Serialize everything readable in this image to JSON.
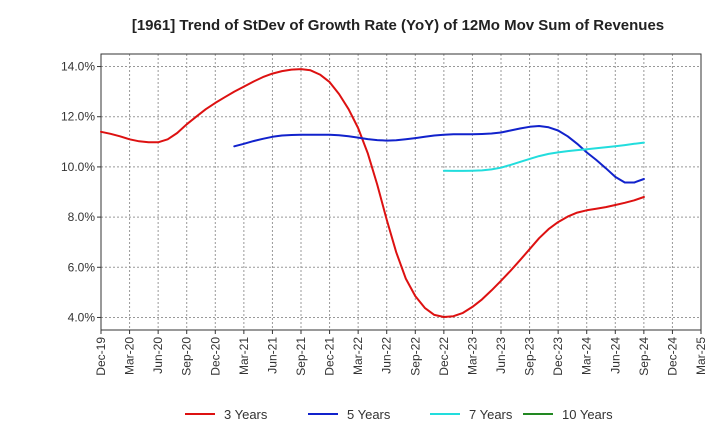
{
  "chart_data": {
    "type": "line",
    "title": "[1961]  Trend of StDev of Growth Rate (YoY) of 12Mo Mov Sum of Revenues",
    "xlabel": "",
    "ylabel": "",
    "ylim": [
      3.5,
      14.5
    ],
    "y_ticks": [
      4.0,
      6.0,
      8.0,
      10.0,
      12.0,
      14.0
    ],
    "y_tick_labels": [
      "4.0%",
      "6.0%",
      "8.0%",
      "10.0%",
      "12.0%",
      "14.0%"
    ],
    "x_tick_labels": [
      "Dec-19",
      "Mar-20",
      "Jun-20",
      "Sep-20",
      "Dec-20",
      "Mar-21",
      "Jun-21",
      "Sep-21",
      "Dec-21",
      "Mar-22",
      "Jun-22",
      "Sep-22",
      "Dec-22",
      "Mar-23",
      "Jun-23",
      "Sep-23",
      "Dec-23",
      "Mar-24",
      "Jun-24",
      "Sep-24",
      "Dec-24",
      "Mar-25"
    ],
    "grid": true,
    "legend_position": "bottom",
    "series": [
      {
        "name": "3 Years",
        "color": "#dd1111",
        "start": 0,
        "values": [
          11.4,
          11.32,
          11.22,
          11.1,
          11.02,
          10.98,
          10.98,
          11.1,
          11.35,
          11.7,
          12.0,
          12.3,
          12.55,
          12.78,
          13.0,
          13.2,
          13.4,
          13.58,
          13.72,
          13.82,
          13.88,
          13.9,
          13.85,
          13.68,
          13.38,
          12.9,
          12.3,
          11.55,
          10.55,
          9.3,
          7.9,
          6.6,
          5.55,
          4.85,
          4.38,
          4.1,
          4.02,
          4.05,
          4.18,
          4.42,
          4.72,
          5.08,
          5.46,
          5.86,
          6.28,
          6.72,
          7.16,
          7.52,
          7.8,
          8.02,
          8.18,
          8.27,
          8.33,
          8.4,
          8.48,
          8.57,
          8.67,
          8.8
        ]
      },
      {
        "name": "5 Years",
        "color": "#1122cc",
        "start": 14,
        "values": [
          10.82,
          10.92,
          11.03,
          11.12,
          11.2,
          11.25,
          11.27,
          11.28,
          11.28,
          11.28,
          11.28,
          11.26,
          11.22,
          11.17,
          11.11,
          11.07,
          11.05,
          11.06,
          11.1,
          11.15,
          11.2,
          11.25,
          11.28,
          11.3,
          11.3,
          11.3,
          11.31,
          11.33,
          11.37,
          11.45,
          11.53,
          11.6,
          11.63,
          11.58,
          11.45,
          11.22,
          10.92,
          10.58,
          10.28,
          9.95,
          9.6,
          9.38,
          9.38,
          9.52
        ]
      },
      {
        "name": "7 Years",
        "color": "#22dddd",
        "start": 36,
        "values": [
          9.85,
          9.84,
          9.84,
          9.85,
          9.86,
          9.9,
          9.97,
          10.08,
          10.2,
          10.32,
          10.43,
          10.52,
          10.58,
          10.63,
          10.67,
          10.7,
          10.74,
          10.78,
          10.82,
          10.87,
          10.92,
          10.97
        ]
      },
      {
        "name": "10 Years",
        "color": "#228822",
        "start": 0,
        "values": []
      }
    ]
  }
}
